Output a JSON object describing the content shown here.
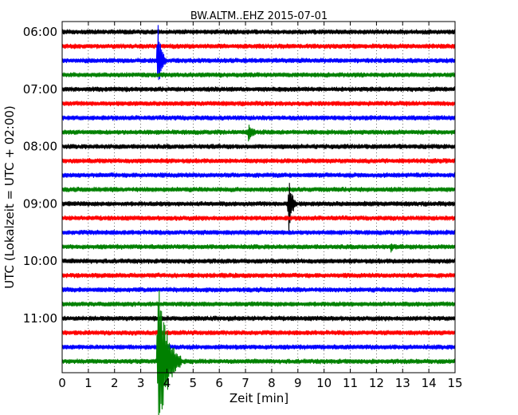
{
  "chart_data": {
    "type": "line",
    "title": "BW.ALTM..EHZ 2015-07-01",
    "xlabel": "Zeit  [min]",
    "ylabel": "UTC (Lokalzeit = UTC + 02:00)",
    "xlim": [
      0,
      15
    ],
    "x_ticks": [
      "0",
      "1",
      "2",
      "3",
      "4",
      "5",
      "6",
      "7",
      "8",
      "9",
      "10",
      "11",
      "12",
      "13",
      "14",
      "15"
    ],
    "y_tick_labels": [
      "06:00",
      "07:00",
      "08:00",
      "09:00",
      "10:00",
      "11:00"
    ],
    "y_tick_trace_index": [
      0,
      4,
      8,
      12,
      16,
      20
    ],
    "grid": "vertical dotted",
    "trace_minutes": 15,
    "trace_start": "06:00",
    "trace_colors": [
      "#000000",
      "#ff0000",
      "#0000ff",
      "#008000"
    ],
    "traces": [
      {
        "start": "06:00",
        "color": "#000000"
      },
      {
        "start": "06:15",
        "color": "#ff0000"
      },
      {
        "start": "06:30",
        "color": "#0000ff",
        "events": [
          {
            "t_min": 3.65,
            "amp": 52,
            "dur": 0.35
          }
        ]
      },
      {
        "start": "06:45",
        "color": "#008000"
      },
      {
        "start": "07:00",
        "color": "#000000"
      },
      {
        "start": "07:15",
        "color": "#ff0000"
      },
      {
        "start": "07:30",
        "color": "#0000ff"
      },
      {
        "start": "07:45",
        "color": "#008000",
        "events": [
          {
            "t_min": 7.1,
            "amp": 12,
            "dur": 0.6
          }
        ]
      },
      {
        "start": "08:00",
        "color": "#000000"
      },
      {
        "start": "08:15",
        "color": "#ff0000"
      },
      {
        "start": "08:30",
        "color": "#0000ff"
      },
      {
        "start": "08:45",
        "color": "#008000"
      },
      {
        "start": "09:00",
        "color": "#000000",
        "events": [
          {
            "t_min": 8.65,
            "amp": 40,
            "dur": 0.35
          }
        ]
      },
      {
        "start": "09:15",
        "color": "#ff0000"
      },
      {
        "start": "09:30",
        "color": "#0000ff"
      },
      {
        "start": "09:45",
        "color": "#008000",
        "events": [
          {
            "t_min": 12.55,
            "amp": 8,
            "dur": 0.3
          }
        ]
      },
      {
        "start": "10:00",
        "color": "#000000"
      },
      {
        "start": "10:15",
        "color": "#ff0000"
      },
      {
        "start": "10:30",
        "color": "#0000ff"
      },
      {
        "start": "10:45",
        "color": "#008000"
      },
      {
        "start": "11:00",
        "color": "#000000"
      },
      {
        "start": "11:15",
        "color": "#ff0000"
      },
      {
        "start": "11:30",
        "color": "#0000ff",
        "events": [
          {
            "t_min": 3.7,
            "amp": 12,
            "dur": 0.5
          }
        ]
      },
      {
        "start": "11:45",
        "color": "#008000",
        "events": [
          {
            "t_min": 3.65,
            "amp": 120,
            "dur": 0.9
          }
        ]
      }
    ]
  }
}
